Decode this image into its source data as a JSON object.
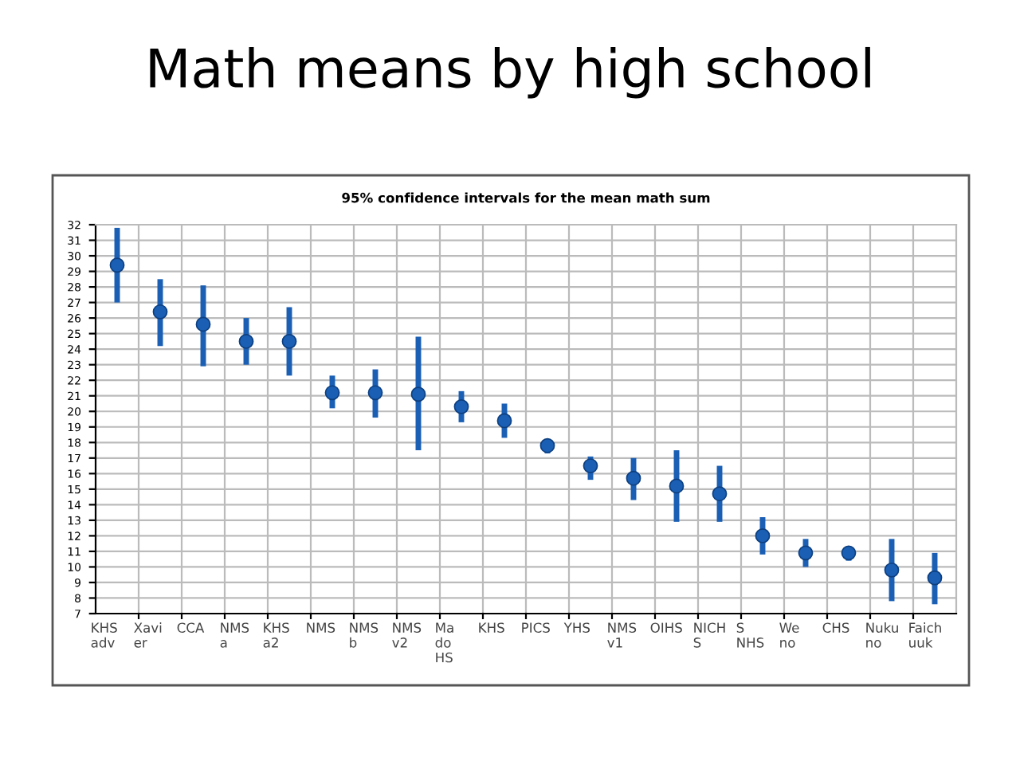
{
  "chart_data": {
    "type": "scatter",
    "title": "Math means by high school",
    "subtitle": "95% confidence intervals for the mean math sum",
    "categories": [
      "KHS\nadv",
      "Xavi\ner",
      "CCA",
      "NMS\na",
      "KHS\na2",
      "NMS",
      "NMS\nb",
      "NMS\nv2",
      "Ma\ndo\nHS",
      "KHS",
      "PICS",
      "YHS",
      "NMS\nv1",
      "OIHS",
      "NICH\nS",
      "S\nNHS",
      "We\nno",
      "CHS",
      "Nuku\nno",
      "Faich\nuuk"
    ],
    "series": [
      {
        "color": "#1a5fb4",
        "values": [
          29.4,
          26.4,
          25.6,
          24.5,
          24.5,
          21.2,
          21.2,
          21.1,
          20.3,
          19.4,
          17.8,
          16.5,
          15.7,
          15.2,
          14.7,
          12.0,
          10.9,
          10.9,
          9.8,
          9.3
        ],
        "errors": [
          [
            27.0,
            31.8
          ],
          [
            24.2,
            28.5
          ],
          [
            22.9,
            28.1
          ],
          [
            23.0,
            26.0
          ],
          [
            22.3,
            26.7
          ],
          [
            20.2,
            22.3
          ],
          [
            19.6,
            22.7
          ],
          [
            17.5,
            24.8
          ],
          [
            19.3,
            21.3
          ],
          [
            18.3,
            20.5
          ],
          [
            17.3,
            18.2
          ],
          [
            15.6,
            17.1
          ],
          [
            14.3,
            17.0
          ],
          [
            12.9,
            17.5
          ],
          [
            12.9,
            16.5
          ],
          [
            10.8,
            13.2
          ],
          [
            10.0,
            11.8
          ],
          [
            10.4,
            11.3
          ],
          [
            7.8,
            11.8
          ],
          [
            7.6,
            10.9
          ]
        ]
      }
    ],
    "ylim": [
      7,
      32
    ],
    "yticks": [
      7,
      8,
      9,
      10,
      11,
      12,
      13,
      14,
      15,
      16,
      17,
      18,
      19,
      20,
      21,
      22,
      23,
      24,
      25,
      26,
      27,
      28,
      29,
      30,
      31,
      32
    ],
    "grid": true,
    "marker": "circle",
    "legend": false
  }
}
